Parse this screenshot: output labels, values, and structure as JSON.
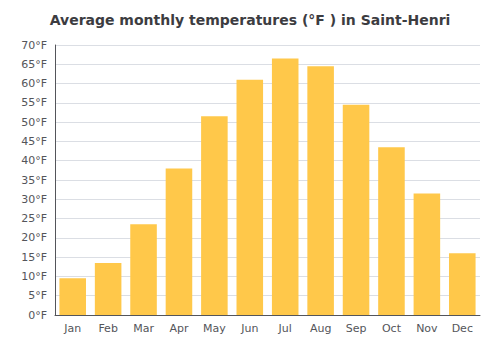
{
  "chart_data": {
    "type": "bar",
    "title": "Average monthly temperatures (°F ) in Saint-Henri",
    "categories": [
      "Jan",
      "Feb",
      "Mar",
      "Apr",
      "May",
      "Jun",
      "Jul",
      "Aug",
      "Sep",
      "Oct",
      "Nov",
      "Dec"
    ],
    "values": [
      9.5,
      13.5,
      23.5,
      38.0,
      51.5,
      61.0,
      66.5,
      64.5,
      54.5,
      43.5,
      31.5,
      16.0
    ],
    "color": "#FFC84A",
    "ylim": [
      0,
      70
    ],
    "yticks": [
      {
        "value": 0,
        "label": "0°F"
      },
      {
        "value": 5,
        "label": "5°F"
      },
      {
        "value": 10,
        "label": "10°F"
      },
      {
        "value": 15,
        "label": "15°F"
      },
      {
        "value": 20,
        "label": "20°F"
      },
      {
        "value": 25,
        "label": "25°F"
      },
      {
        "value": 30,
        "label": "30°F"
      },
      {
        "value": 35,
        "label": "35°F"
      },
      {
        "value": 40,
        "label": "40°F"
      },
      {
        "value": 45,
        "label": "45°F"
      },
      {
        "value": 50,
        "label": "50°F"
      },
      {
        "value": 55,
        "label": "55°F"
      },
      {
        "value": 60,
        "label": "60°F"
      },
      {
        "value": 65,
        "label": "65°F"
      },
      {
        "value": 70,
        "label": "70°F"
      }
    ],
    "grid": true
  }
}
